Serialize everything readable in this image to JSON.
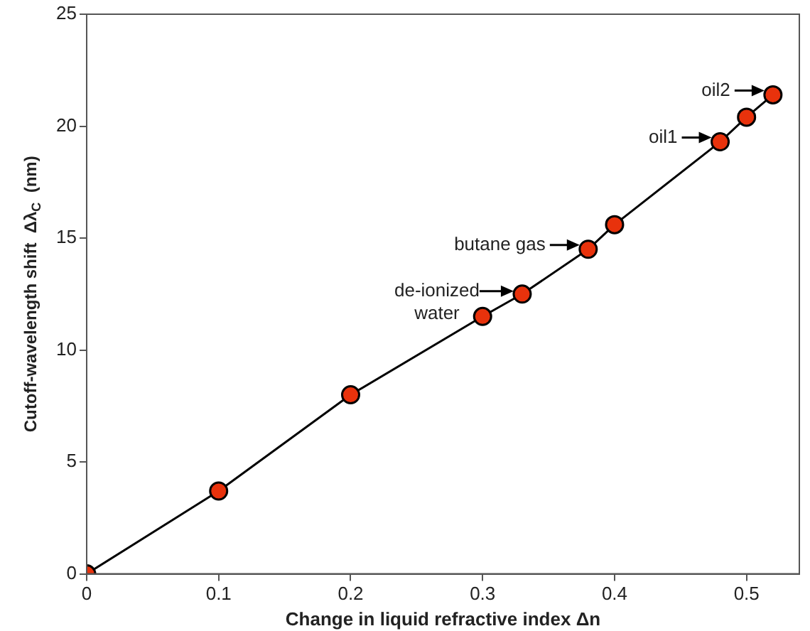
{
  "chart_data": {
    "type": "line",
    "xlabel": "Change in liquid refractive index Δn",
    "ylabel": "Cutoff-wavelength shift  Δλ$_{C}$  (nm)",
    "x": [
      0,
      0.1,
      0.2,
      0.3,
      0.33,
      0.38,
      0.4,
      0.48,
      0.5,
      0.52
    ],
    "values": [
      0,
      3.7,
      8.0,
      11.5,
      12.5,
      14.5,
      15.6,
      19.3,
      20.4,
      21.4
    ],
    "color": "#e8320c",
    "marker": "circle",
    "line_style": "solid",
    "grid": false,
    "legend": false,
    "xlim": [
      0,
      0.54
    ],
    "xticks": [
      0,
      0.1,
      0.2,
      0.3,
      0.4,
      0.5
    ],
    "ylim": [
      0,
      25
    ],
    "yticks": [
      0,
      5,
      10,
      15,
      20,
      25
    ],
    "annotations": [
      {
        "text": "de-ionized water",
        "x": 0.33,
        "y": 12.5
      },
      {
        "text": "butane gas",
        "x": 0.38,
        "y": 14.5
      },
      {
        "text": "oil1",
        "x": 0.48,
        "y": 19.3
      },
      {
        "text": "oil2",
        "x": 0.52,
        "y": 21.4
      }
    ]
  }
}
